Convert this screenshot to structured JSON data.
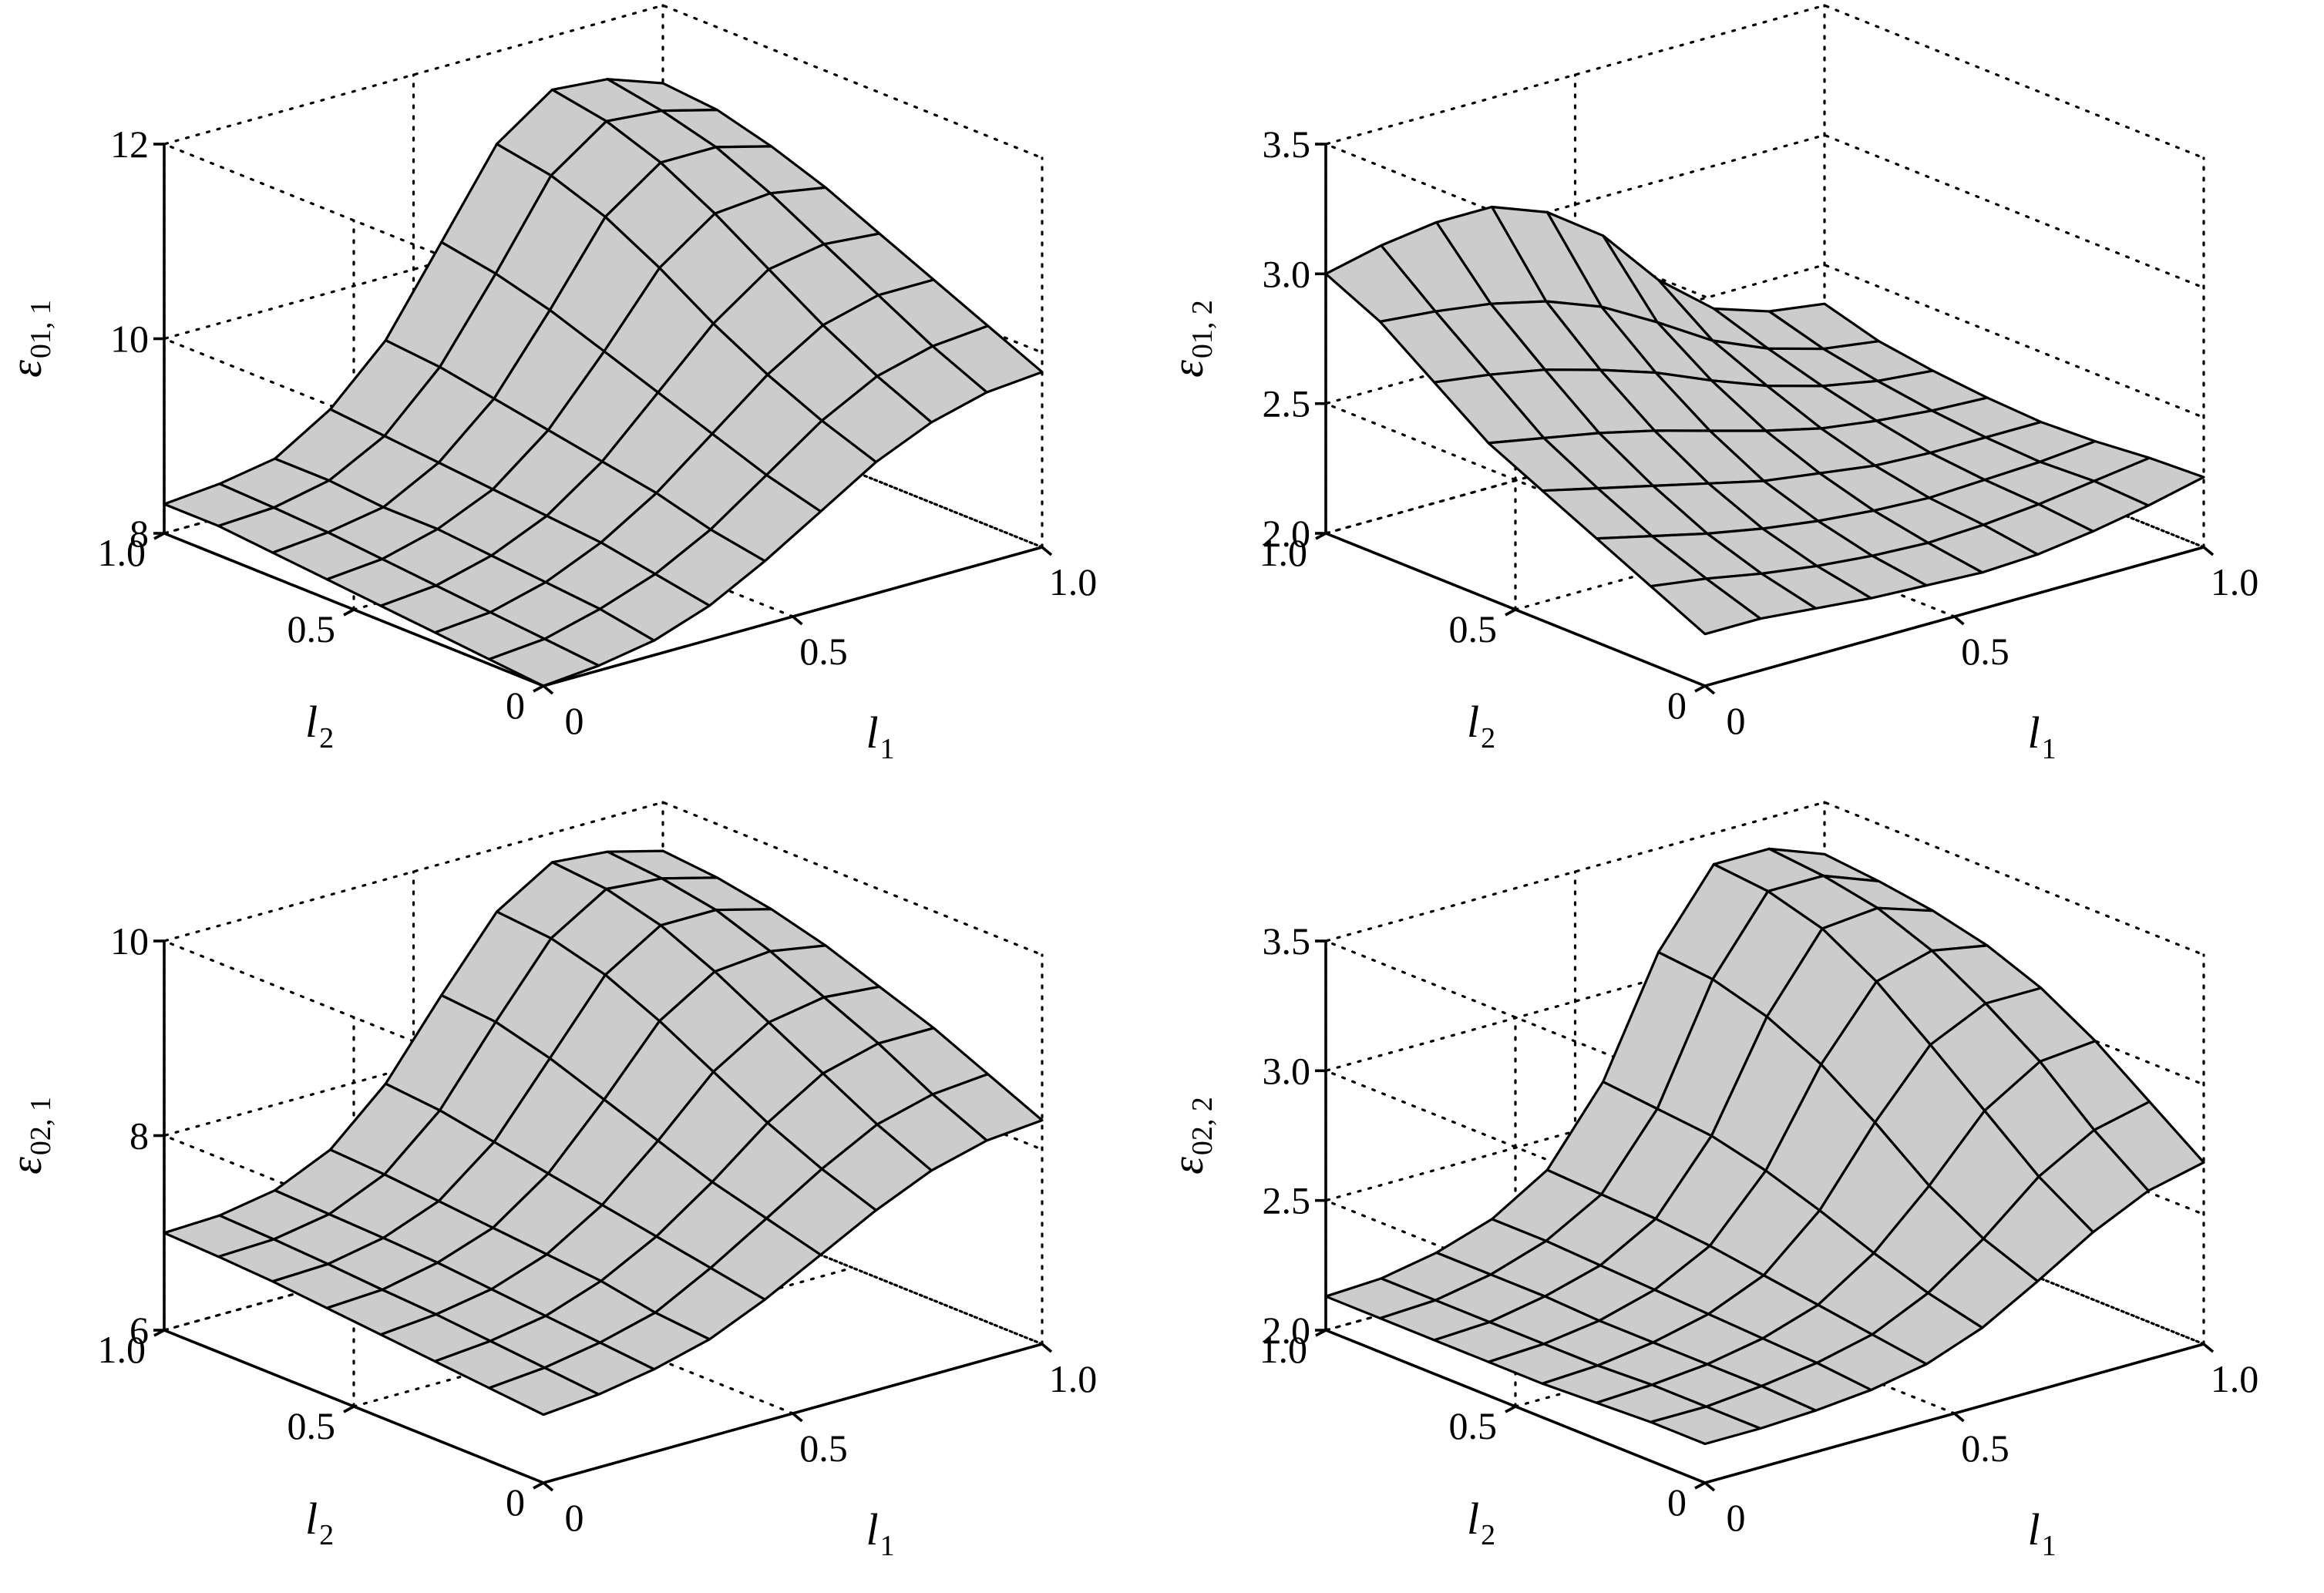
{
  "chart_data": [
    {
      "type": "surface",
      "zlabel": {
        "symbol": "ε",
        "subscript": "01, 1"
      },
      "xlabel": {
        "symbol": "l",
        "subscript": "1"
      },
      "ylabel": {
        "symbol": "l",
        "subscript": "2"
      },
      "xlim": [
        0,
        1
      ],
      "ylim": [
        0,
        1
      ],
      "zlim": [
        8,
        12
      ],
      "xticks": [
        "0",
        "0.5",
        "1.0"
      ],
      "yticks": [
        "0",
        "0.5",
        "1.0"
      ],
      "zticks": [
        "8",
        "10",
        "12"
      ],
      "grid": true,
      "l1": [
        0,
        0.111,
        0.222,
        0.333,
        0.444,
        0.556,
        0.667,
        0.778,
        0.889,
        1.0
      ],
      "l2": [
        0,
        0.143,
        0.286,
        0.429,
        0.571,
        0.714,
        0.857,
        1.0
      ],
      "z": [
        [
          8.0,
          8.05,
          8.15,
          8.35,
          8.65,
          9.0,
          9.35,
          9.6,
          9.75,
          9.8
        ],
        [
          8.05,
          8.1,
          8.25,
          8.45,
          8.75,
          9.15,
          9.55,
          9.85,
          10.0,
          10.05
        ],
        [
          8.1,
          8.15,
          8.3,
          8.55,
          8.9,
          9.35,
          9.8,
          10.15,
          10.3,
          10.3
        ],
        [
          8.15,
          8.2,
          8.35,
          8.6,
          9.0,
          9.55,
          10.1,
          10.5,
          10.6,
          10.55
        ],
        [
          8.2,
          8.25,
          8.4,
          8.65,
          9.1,
          9.75,
          10.45,
          10.85,
          10.9,
          10.8
        ],
        [
          8.25,
          8.3,
          8.4,
          8.7,
          9.2,
          9.95,
          10.75,
          11.15,
          11.15,
          11.0
        ],
        [
          8.3,
          8.33,
          8.45,
          8.75,
          9.3,
          10.1,
          10.95,
          11.35,
          11.3,
          11.15
        ],
        [
          8.3,
          8.35,
          8.45,
          8.8,
          9.35,
          10.2,
          11.05,
          11.45,
          11.4,
          11.2
        ]
      ]
    },
    {
      "type": "surface",
      "zlabel": {
        "symbol": "ε",
        "subscript": "01, 2"
      },
      "xlabel": {
        "symbol": "l",
        "subscript": "1"
      },
      "ylabel": {
        "symbol": "l",
        "subscript": "2"
      },
      "xlim": [
        0,
        1
      ],
      "ylim": [
        0,
        1
      ],
      "zlim": [
        2.0,
        3.5
      ],
      "xticks": [
        "0",
        "0.5",
        "1.0"
      ],
      "yticks": [
        "0",
        "0.5",
        "1.0"
      ],
      "zticks": [
        "2.0",
        "2.5",
        "3.0",
        "3.5"
      ],
      "grid": true,
      "l1": [
        0,
        0.111,
        0.222,
        0.333,
        0.444,
        0.556,
        0.667,
        0.778,
        0.889,
        1.0
      ],
      "l2": [
        0,
        0.143,
        0.286,
        0.429,
        0.571,
        0.714,
        0.857,
        1.0
      ],
      "z": [
        [
          2.2,
          2.2,
          2.18,
          2.16,
          2.15,
          2.14,
          2.15,
          2.18,
          2.22,
          2.27
        ],
        [
          2.3,
          2.27,
          2.23,
          2.2,
          2.18,
          2.17,
          2.18,
          2.2,
          2.23,
          2.26
        ],
        [
          2.4,
          2.35,
          2.3,
          2.26,
          2.23,
          2.21,
          2.2,
          2.21,
          2.22,
          2.24
        ],
        [
          2.5,
          2.45,
          2.4,
          2.35,
          2.3,
          2.27,
          2.24,
          2.23,
          2.23,
          2.23
        ],
        [
          2.6,
          2.56,
          2.52,
          2.47,
          2.41,
          2.35,
          2.3,
          2.27,
          2.25,
          2.24
        ],
        [
          2.75,
          2.72,
          2.68,
          2.62,
          2.55,
          2.46,
          2.38,
          2.32,
          2.28,
          2.26
        ],
        [
          2.9,
          2.88,
          2.85,
          2.8,
          2.72,
          2.6,
          2.47,
          2.38,
          2.32,
          2.29
        ],
        [
          3.0,
          3.05,
          3.08,
          3.08,
          3.0,
          2.85,
          2.62,
          2.45,
          2.38,
          2.35
        ]
      ]
    },
    {
      "type": "surface",
      "zlabel": {
        "symbol": "ε",
        "subscript": "02, 1"
      },
      "xlabel": {
        "symbol": "l",
        "subscript": "1"
      },
      "ylabel": {
        "symbol": "l",
        "subscript": "2"
      },
      "xlim": [
        0,
        1
      ],
      "ylim": [
        0,
        1
      ],
      "zlim": [
        6,
        10
      ],
      "xticks": [
        "0",
        "0.5",
        "1.0"
      ],
      "yticks": [
        "0",
        "0.5",
        "1.0"
      ],
      "zticks": [
        "6",
        "8",
        "10"
      ],
      "grid": true,
      "l1": [
        0,
        0.111,
        0.222,
        0.333,
        0.444,
        0.556,
        0.667,
        0.778,
        0.889,
        1.0
      ],
      "l2": [
        0,
        0.143,
        0.286,
        0.429,
        0.571,
        0.714,
        0.857,
        1.0
      ],
      "z": [
        [
          6.7,
          6.75,
          6.85,
          7.0,
          7.25,
          7.55,
          7.85,
          8.1,
          8.25,
          8.3
        ],
        [
          6.75,
          6.8,
          6.9,
          7.05,
          7.35,
          7.7,
          8.05,
          8.35,
          8.5,
          8.55
        ],
        [
          6.8,
          6.85,
          6.95,
          7.15,
          7.45,
          7.85,
          8.3,
          8.65,
          8.8,
          8.8
        ],
        [
          6.85,
          6.9,
          7.0,
          7.2,
          7.55,
          8.05,
          8.6,
          8.95,
          9.05,
          9.0
        ],
        [
          6.9,
          6.93,
          7.05,
          7.25,
          7.65,
          8.25,
          8.9,
          9.25,
          9.3,
          9.2
        ],
        [
          6.95,
          6.97,
          7.08,
          7.3,
          7.75,
          8.45,
          9.15,
          9.5,
          9.5,
          9.35
        ],
        [
          6.98,
          7.0,
          7.1,
          7.35,
          7.85,
          8.6,
          9.3,
          9.65,
          9.6,
          9.45
        ],
        [
          7.0,
          7.02,
          7.12,
          7.38,
          7.9,
          8.65,
          9.35,
          9.7,
          9.65,
          9.5
        ]
      ]
    },
    {
      "type": "surface",
      "zlabel": {
        "symbol": "ε",
        "subscript": "02, 2"
      },
      "xlabel": {
        "symbol": "l",
        "subscript": "1"
      },
      "ylabel": {
        "symbol": "l",
        "subscript": "2"
      },
      "xlim": [
        0,
        1
      ],
      "ylim": [
        0,
        1
      ],
      "zlim": [
        2.0,
        3.5
      ],
      "xticks": [
        "0",
        "0.5",
        "1.0"
      ],
      "yticks": [
        "0",
        "0.5",
        "1.0"
      ],
      "zticks": [
        "2.0",
        "2.5",
        "3.0",
        "3.5"
      ],
      "grid": true,
      "l1": [
        0,
        0.111,
        0.222,
        0.333,
        0.444,
        0.556,
        0.667,
        0.778,
        0.889,
        1.0
      ],
      "l2": [
        0,
        0.143,
        0.286,
        0.429,
        0.571,
        0.714,
        0.857,
        1.0
      ],
      "z": [
        [
          2.15,
          2.15,
          2.16,
          2.18,
          2.22,
          2.3,
          2.42,
          2.55,
          2.65,
          2.7
        ],
        [
          2.15,
          2.15,
          2.17,
          2.2,
          2.25,
          2.35,
          2.5,
          2.68,
          2.8,
          2.85
        ],
        [
          2.14,
          2.15,
          2.17,
          2.21,
          2.28,
          2.42,
          2.62,
          2.85,
          2.98,
          3.0
        ],
        [
          2.13,
          2.14,
          2.17,
          2.22,
          2.31,
          2.5,
          2.78,
          3.02,
          3.12,
          3.12
        ],
        [
          2.13,
          2.14,
          2.17,
          2.23,
          2.34,
          2.57,
          2.92,
          3.18,
          3.24,
          3.2
        ],
        [
          2.13,
          2.14,
          2.18,
          2.24,
          2.36,
          2.62,
          3.02,
          3.3,
          3.32,
          3.25
        ],
        [
          2.13,
          2.14,
          2.18,
          2.25,
          2.37,
          2.64,
          3.08,
          3.36,
          3.36,
          3.28
        ],
        [
          2.13,
          2.14,
          2.18,
          2.25,
          2.38,
          2.66,
          3.1,
          3.38,
          3.38,
          3.3
        ]
      ]
    }
  ],
  "style": {
    "surface_fill": "#cccccc",
    "edge_color": "#000000",
    "grid_color": "#000000"
  }
}
